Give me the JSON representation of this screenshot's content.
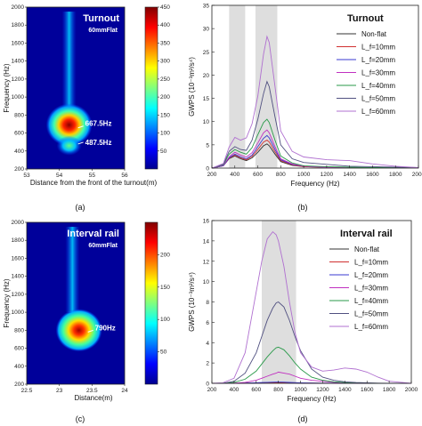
{
  "captions": [
    "(a)",
    "(b)",
    "(c)",
    "(d)"
  ],
  "chart_data": [
    {
      "type": "heatmap",
      "title": "Turnout",
      "subtitle": "60mmFlat",
      "xlabel": "Distance from the front of the turnout(m)",
      "ylabel": "Frequency (Hz)",
      "xlim": [
        53,
        56
      ],
      "ylim": [
        200,
        2000
      ],
      "x_ticks": [
        "53",
        "54",
        "55",
        "56"
      ],
      "y_ticks": [
        "200",
        "400",
        "600",
        "800",
        "1000",
        "1200",
        "1400",
        "1600",
        "1800",
        "2000"
      ],
      "colorbar": {
        "min": 0,
        "max": 450,
        "ticks": [
          "50",
          "100",
          "150",
          "200",
          "250",
          "300",
          "350",
          "400",
          "450"
        ]
      },
      "annotations": [
        {
          "text": "667.5Hz",
          "x": 54.3,
          "y": 667.5
        },
        {
          "text": "487.5Hz",
          "x": 54.3,
          "y": 487.5
        }
      ],
      "hotspots": [
        {
          "x": 54.3,
          "y": 690,
          "peak": 450
        },
        {
          "x": 54.3,
          "y": 460,
          "peak": 160
        }
      ],
      "ridge": {
        "x": 54.3,
        "from": 800,
        "to": 1950
      }
    },
    {
      "type": "line",
      "title": "Turnout",
      "xlabel": "Frequency (Hz)",
      "ylabel": "GWPS (10⁻³m²/s⁴)",
      "xlim": [
        200,
        2000
      ],
      "ylim": [
        0,
        35
      ],
      "x_ticks": [
        200,
        400,
        600,
        800,
        1000,
        1200,
        1400,
        1600,
        1800,
        2000
      ],
      "y_ticks": [
        0,
        5,
        10,
        15,
        20,
        25,
        30,
        35
      ],
      "shaded_bands": [
        [
          350,
          490
        ],
        [
          580,
          770
        ]
      ],
      "x": [
        200,
        300,
        350,
        400,
        450,
        500,
        550,
        600,
        650,
        680,
        700,
        750,
        800,
        900,
        1000,
        1200,
        1400,
        1600,
        1800,
        2000
      ],
      "series": [
        {
          "name": "Non-flat",
          "color": "#333333",
          "values": [
            0,
            0.5,
            2.0,
            2.6,
            2.0,
            1.6,
            2.2,
            3.4,
            4.8,
            5.2,
            4.8,
            3.0,
            1.4,
            0.6,
            0.3,
            0.2,
            0.1,
            0.1,
            0.1,
            0.1
          ]
        },
        {
          "name": "L_f=10mm",
          "color": "#d03030",
          "values": [
            0,
            0.5,
            2.1,
            2.8,
            2.2,
            1.8,
            2.5,
            4.0,
            5.6,
            6.0,
            5.6,
            3.5,
            1.6,
            0.7,
            0.3,
            0.2,
            0.1,
            0.1,
            0.1,
            0.1
          ]
        },
        {
          "name": "L_f=20mm",
          "color": "#3a3ad0",
          "values": [
            0,
            0.5,
            2.2,
            3.0,
            2.4,
            2.0,
            2.8,
            4.6,
            6.4,
            7.0,
            6.5,
            4.0,
            1.8,
            0.8,
            0.4,
            0.2,
            0.1,
            0.1,
            0.1,
            0.1
          ]
        },
        {
          "name": "L_f=30mm",
          "color": "#c030c0",
          "values": [
            0,
            0.6,
            2.4,
            3.4,
            2.8,
            2.4,
            3.3,
            5.4,
            7.6,
            8.2,
            7.6,
            4.6,
            2.0,
            0.9,
            0.4,
            0.2,
            0.1,
            0.1,
            0.1,
            0.1
          ]
        },
        {
          "name": "L_f=40mm",
          "color": "#2a9a4a",
          "values": [
            0,
            0.7,
            3.0,
            4.0,
            3.4,
            3.0,
            4.4,
            7.2,
            9.8,
            10.5,
            9.8,
            6.0,
            2.6,
            1.1,
            0.5,
            0.3,
            0.2,
            0.1,
            0.1,
            0.1
          ]
        },
        {
          "name": "L_f=50mm",
          "color": "#505080",
          "values": [
            0,
            0.8,
            3.6,
            4.6,
            4.0,
            3.8,
            6.0,
            10.5,
            16.0,
            18.6,
            17.5,
            11.0,
            5.0,
            2.0,
            1.2,
            0.8,
            0.4,
            0.3,
            0.2,
            0.1
          ]
        },
        {
          "name": "L_f=60mm",
          "color": "#b070d0",
          "values": [
            0,
            1.0,
            4.5,
            6.6,
            6.0,
            6.5,
            9.5,
            15.5,
            24.5,
            28.3,
            27.0,
            17.5,
            8.0,
            3.6,
            2.4,
            1.8,
            1.6,
            0.9,
            0.4,
            0.1
          ]
        }
      ],
      "legend": "right"
    },
    {
      "type": "heatmap",
      "title": "Interval rail",
      "subtitle": "60mmFlat",
      "xlabel": "Distance(m)",
      "ylabel": "Frequency (Hz)",
      "xlim": [
        22.5,
        24
      ],
      "ylim": [
        200,
        2000
      ],
      "x_ticks": [
        "22.5",
        "23",
        "23.5",
        "24"
      ],
      "y_ticks": [
        "200",
        "400",
        "600",
        "800",
        "1000",
        "1200",
        "1400",
        "1600",
        "1800",
        "2000"
      ],
      "colorbar": {
        "min": 0,
        "max": 250,
        "ticks": [
          "50",
          "100",
          "150",
          "200"
        ]
      },
      "annotations": [
        {
          "text": "790Hz",
          "x": 23.3,
          "y": 790
        }
      ],
      "hotspots": [
        {
          "x": 23.3,
          "y": 800,
          "peak": 250
        }
      ],
      "ridge": {
        "x": 23.2,
        "from": 1000,
        "to": 1950
      }
    },
    {
      "type": "line",
      "title": "Interval rail",
      "xlabel": "Frequency (Hz)",
      "ylabel": "GWPS (10⁻³m²/s⁴)",
      "xlim": [
        200,
        2000
      ],
      "ylim": [
        0,
        16
      ],
      "x_ticks": [
        200,
        400,
        600,
        800,
        1000,
        1200,
        1400,
        1600,
        1800,
        2000
      ],
      "y_ticks": [
        0,
        2,
        4,
        6,
        8,
        10,
        12,
        14,
        16
      ],
      "shaded_bands": [
        [
          650,
          960
        ]
      ],
      "x": [
        200,
        300,
        400,
        500,
        600,
        650,
        700,
        750,
        780,
        800,
        850,
        900,
        950,
        1000,
        1100,
        1200,
        1300,
        1400,
        1500,
        1600,
        1700,
        1800,
        2000
      ],
      "series": [
        {
          "name": "Non-flat",
          "color": "#333333",
          "values": [
            0,
            0,
            0,
            0.02,
            0.03,
            0.03,
            0.04,
            0.04,
            0.04,
            0.04,
            0.04,
            0.03,
            0.03,
            0.02,
            0.02,
            0.01,
            0.01,
            0.01,
            0.01,
            0,
            0,
            0,
            0
          ]
        },
        {
          "name": "L_f=10mm",
          "color": "#d03030",
          "values": [
            0,
            0,
            0,
            0.02,
            0.04,
            0.05,
            0.06,
            0.07,
            0.07,
            0.07,
            0.06,
            0.05,
            0.04,
            0.03,
            0.02,
            0.02,
            0.01,
            0.01,
            0.01,
            0,
            0,
            0,
            0
          ]
        },
        {
          "name": "L_f=20mm",
          "color": "#3a3ad0",
          "values": [
            0,
            0,
            0.01,
            0.03,
            0.06,
            0.08,
            0.1,
            0.11,
            0.12,
            0.12,
            0.11,
            0.09,
            0.07,
            0.05,
            0.03,
            0.02,
            0.02,
            0.01,
            0.01,
            0,
            0,
            0,
            0
          ]
        },
        {
          "name": "L_f=30mm",
          "color": "#c030c0",
          "values": [
            0,
            0,
            0.02,
            0.1,
            0.3,
            0.5,
            0.7,
            0.9,
            1.0,
            1.1,
            1.0,
            0.9,
            0.7,
            0.5,
            0.3,
            0.2,
            0.1,
            0.05,
            0.02,
            0,
            0,
            0,
            0
          ]
        },
        {
          "name": "L_f=40mm",
          "color": "#2a9a4a",
          "values": [
            0,
            0,
            0.1,
            0.4,
            1.2,
            1.9,
            2.6,
            3.2,
            3.5,
            3.55,
            3.3,
            2.7,
            2.0,
            1.4,
            0.6,
            0.3,
            0.15,
            0.08,
            0.04,
            0.02,
            0,
            0,
            0
          ]
        },
        {
          "name": "L_f=50mm",
          "color": "#505080",
          "values": [
            0,
            0,
            0.2,
            1.0,
            3.0,
            4.6,
            6.2,
            7.4,
            7.9,
            8.0,
            7.5,
            6.2,
            4.6,
            3.2,
            1.4,
            0.6,
            0.3,
            0.15,
            0.08,
            0.04,
            0.02,
            0,
            0
          ]
        },
        {
          "name": "L_f=60mm",
          "color": "#b070d0",
          "values": [
            0,
            0.05,
            0.5,
            3.0,
            9.0,
            12.0,
            14.2,
            14.9,
            14.6,
            14.0,
            11.5,
            8.0,
            5.0,
            3.0,
            1.6,
            1.2,
            1.3,
            1.5,
            1.4,
            1.1,
            0.6,
            0.2,
            0
          ]
        }
      ],
      "legend": "right"
    }
  ]
}
